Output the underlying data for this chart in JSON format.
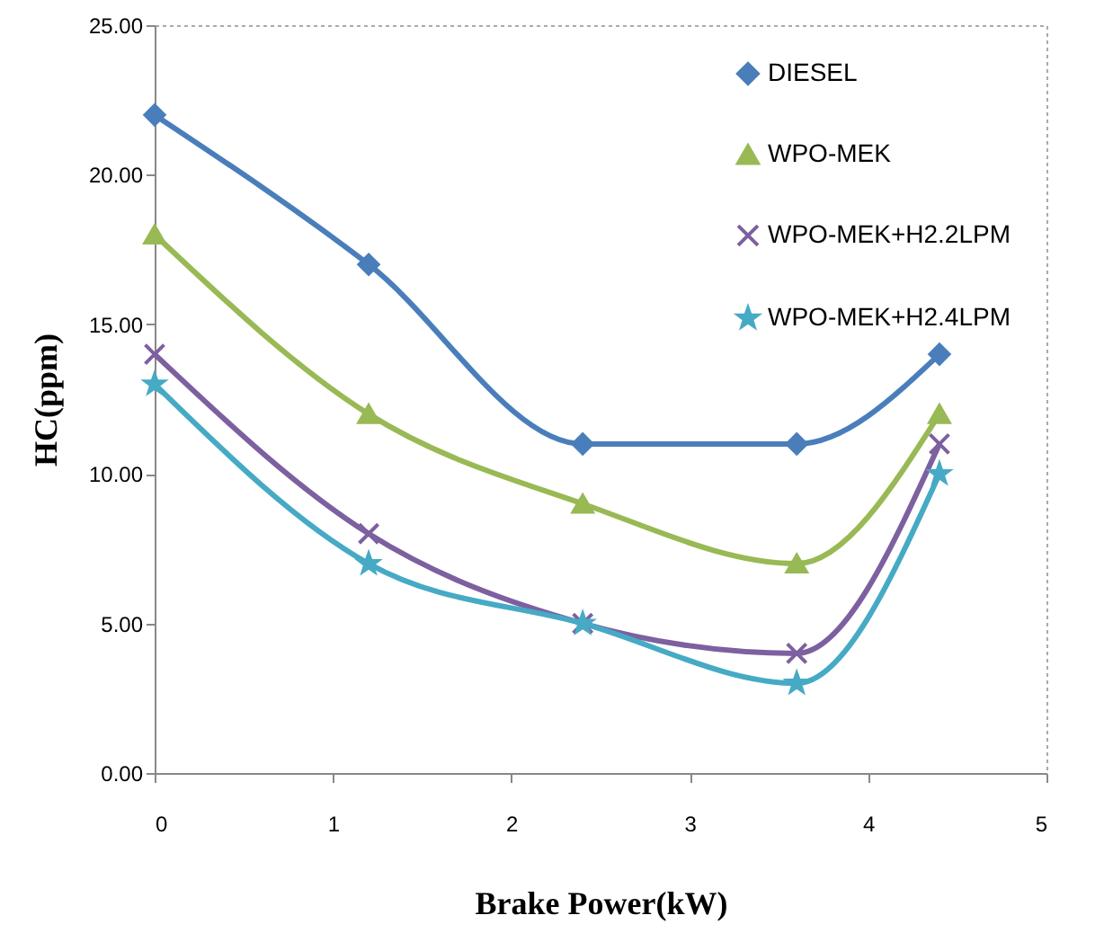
{
  "chart_data": {
    "type": "line",
    "xlabel": "Brake Power(kW)",
    "ylabel": "HC(ppm)",
    "x": [
      0,
      1.2,
      2.4,
      3.6,
      4.4
    ],
    "series": [
      {
        "name": "DIESEL",
        "color": "#4a7ebb",
        "marker": "diamond",
        "values": [
          22,
          17,
          11,
          11,
          14
        ]
      },
      {
        "name": "WPO-MEK",
        "color": "#98b954",
        "marker": "triangle",
        "values": [
          18,
          12,
          9,
          7,
          12
        ]
      },
      {
        "name": "WPO-MEK+H2.2LPM",
        "color": "#7d60a0",
        "marker": "cross",
        "values": [
          14,
          8,
          5,
          4,
          11
        ]
      },
      {
        "name": "WPO-MEK+H2.4LPM",
        "color": "#46aac5",
        "marker": "star",
        "values": [
          13,
          7,
          5,
          3,
          10
        ]
      }
    ],
    "xlim": [
      0,
      5
    ],
    "xticks": [
      0,
      1,
      2,
      3,
      4,
      5
    ],
    "ylim": [
      0,
      25
    ],
    "yticks": [
      {
        "value": 0,
        "label": "0.00"
      },
      {
        "value": 5,
        "label": "5.00"
      },
      {
        "value": 10,
        "label": "10.00"
      },
      {
        "value": 15,
        "label": "15.00"
      },
      {
        "value": 20,
        "label": "20.00"
      },
      {
        "value": 25,
        "label": "25.00"
      }
    ],
    "legend": "top right",
    "grid": false
  }
}
